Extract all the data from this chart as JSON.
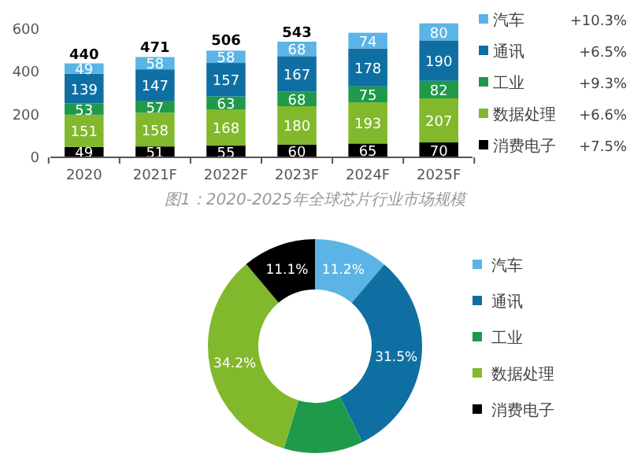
{
  "chart_data": [
    {
      "type": "bar",
      "stacked": true,
      "categories": [
        "2020",
        "2021F",
        "2022F",
        "2023F",
        "2024F",
        "2025F"
      ],
      "series": [
        {
          "name": "消费电子",
          "color": "#000000",
          "values": [
            49,
            51,
            55,
            60,
            65,
            70
          ]
        },
        {
          "name": "数据处理",
          "color": "#82b82b",
          "values": [
            151,
            158,
            168,
            180,
            193,
            207
          ]
        },
        {
          "name": "工业",
          "color": "#1e9a4a",
          "values": [
            53,
            57,
            63,
            68,
            75,
            82
          ]
        },
        {
          "name": "通讯",
          "color": "#0f6fa3",
          "values": [
            139,
            147,
            157,
            167,
            178,
            190
          ]
        },
        {
          "name": "汽车",
          "color": "#5bb4e5",
          "values": [
            49,
            58,
            58,
            68,
            74,
            80
          ]
        }
      ],
      "ylim": [
        0,
        650
      ],
      "yticks": [
        0,
        200,
        400,
        600
      ],
      "grid": false,
      "legend": "right",
      "data_labels": true,
      "annotations": [
        "+7.5%",
        "+6.6%",
        "+9.3%",
        "+6.5%",
        "+10.3%",
        "图1：2020-2025年全球芯片行业市场规模",
        {
          "text": "440",
          "x": "2020",
          "y": 440
        },
        {
          "text": "471",
          "x": "2021F",
          "y": 471
        },
        {
          "text": "506",
          "x": "2022F",
          "y": 506
        },
        {
          "text": "543",
          "x": "2023F",
          "y": 543
        }
      ]
    },
    {
      "type": "donut",
      "categories": [
        "汽车",
        "通讯",
        "工业",
        "数据处理",
        "消费电子"
      ],
      "values": [
        11.2,
        31.5,
        12.0,
        34.2,
        11.1
      ],
      "colors": [
        "#5bb4e5",
        "#0f6fa3",
        "#1e9a4a",
        "#82b82b",
        "#000000"
      ],
      "value_labels": [
        "11.2%",
        "31.5%",
        null,
        "34.2%",
        "11.1%"
      ],
      "legend": "right"
    }
  ]
}
